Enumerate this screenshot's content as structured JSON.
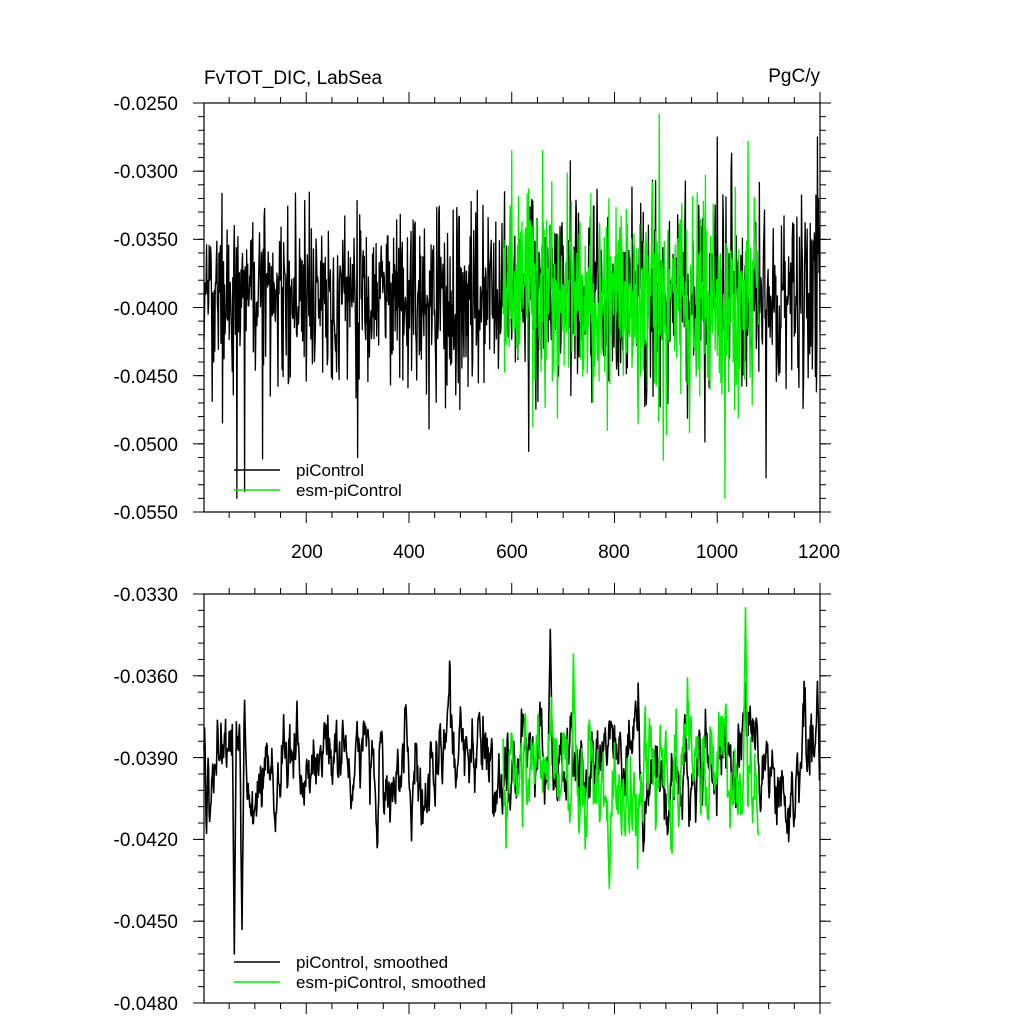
{
  "chart_data": [
    {
      "type": "line",
      "title": "FvTOT_DIC, LabSea",
      "units": "PgC/y",
      "xlabel": "",
      "ylabel": "",
      "xlim": [
        1,
        1200
      ],
      "ylim": [
        -0.055,
        -0.025
      ],
      "x_ticks": [
        200,
        400,
        600,
        800,
        1000,
        1200
      ],
      "x_tick_labels": [
        "200",
        "400",
        "600",
        "800",
        "1000",
        "1200"
      ],
      "y_ticks": [
        -0.025,
        -0.03,
        -0.035,
        -0.04,
        -0.045,
        -0.05,
        -0.055
      ],
      "y_tick_labels": [
        "-0.0250",
        "-0.0300",
        "-0.0350",
        "-0.0400",
        "-0.0450",
        "-0.0500",
        "-0.0550"
      ],
      "grid": false,
      "legend_position": "bottom-left",
      "series": [
        {
          "name": "piControl",
          "color": "#000000",
          "x_range": [
            1,
            1200
          ],
          "mean": -0.0392,
          "amplitude": 0.0045,
          "extremes": [
            [
              65,
              -0.054
            ],
            [
              80,
              -0.0535
            ],
            [
              300,
              -0.051
            ],
            [
              1000,
              -0.0275
            ],
            [
              1095,
              -0.0525
            ],
            [
              1195,
              -0.0275
            ]
          ]
        },
        {
          "name": "esm-piControl",
          "color": "#00ee00",
          "x_range": [
            583,
            1080
          ],
          "mean": -0.0392,
          "amplitude": 0.0052,
          "extremes": [
            [
              600,
              -0.0285
            ],
            [
              660,
              -0.0285
            ],
            [
              895,
              -0.0512
            ],
            [
              1015,
              -0.054
            ],
            [
              1060,
              -0.0278
            ]
          ]
        }
      ]
    },
    {
      "type": "line",
      "title": "",
      "xlabel": "",
      "ylabel": "",
      "xlim": [
        1,
        1200
      ],
      "ylim": [
        -0.048,
        -0.033
      ],
      "x_ticks": [
        200,
        400,
        600,
        800,
        1000,
        1200
      ],
      "y_ticks": [
        -0.033,
        -0.036,
        -0.039,
        -0.042,
        -0.045,
        -0.048
      ],
      "y_tick_labels": [
        "-0.0330",
        "-0.0360",
        "-0.0390",
        "-0.0420",
        "-0.0450",
        "-0.0480"
      ],
      "grid": false,
      "legend_position": "bottom-left",
      "series": [
        {
          "name": "piControl, smoothed",
          "color": "#000000",
          "x_range": [
            1,
            1200
          ],
          "mean": -0.0394,
          "amplitude": 0.0012,
          "extremes": [
            [
              60,
              -0.0462
            ],
            [
              75,
              -0.0453
            ],
            [
              675,
              -0.0343
            ],
            [
              1195,
              -0.0362
            ]
          ]
        },
        {
          "name": "esm-piControl, smoothed",
          "color": "#00ee00",
          "x_range": [
            583,
            1080
          ],
          "mean": -0.0393,
          "amplitude": 0.0014,
          "extremes": [
            [
              720,
              -0.0352
            ],
            [
              790,
              -0.0438
            ],
            [
              1055,
              -0.0335
            ]
          ]
        }
      ]
    }
  ]
}
